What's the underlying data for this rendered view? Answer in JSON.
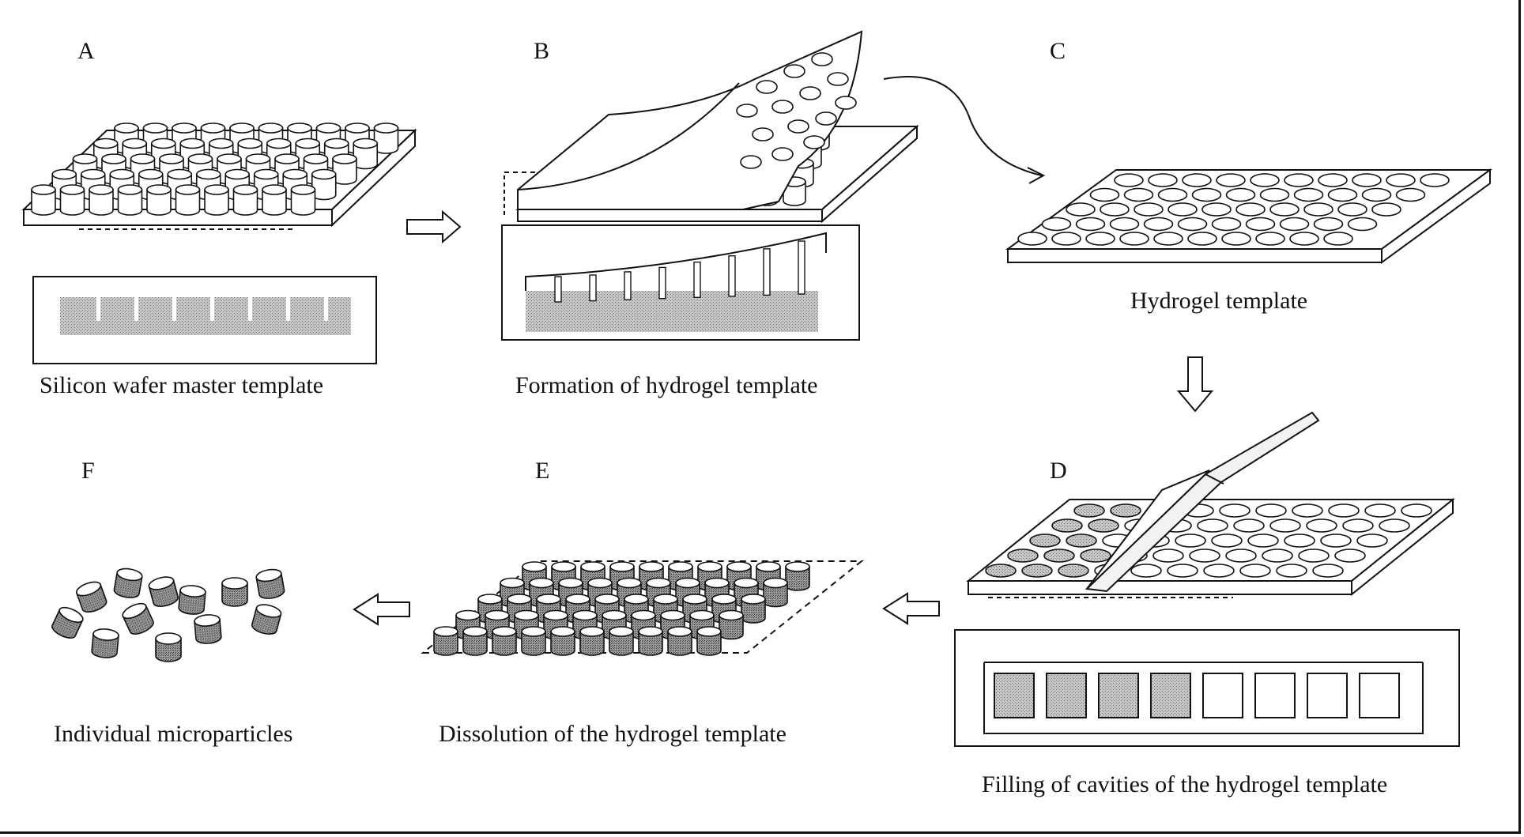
{
  "panels": {
    "a": {
      "letter": "A",
      "caption": "Silicon wafer master template"
    },
    "b": {
      "letter": "B",
      "caption": "Formation of hydrogel template"
    },
    "c": {
      "letter": "C",
      "caption": "Hydrogel template"
    },
    "d": {
      "letter": "D",
      "caption": "Filling of cavities of the hydrogel template"
    },
    "e": {
      "letter": "E",
      "caption": "Dissolution of the hydrogel template"
    },
    "f": {
      "letter": "F",
      "caption": "Individual microparticles"
    }
  },
  "colors": {
    "line": "#111111",
    "fill_gray": "#bdbdbd",
    "fill_dark": "#8c8c8c",
    "paper": "#ffffff"
  },
  "icons": [
    "arrow-right-icon",
    "arrow-left-icon",
    "arrow-down-icon",
    "curved-arrow-icon",
    "spatula-icon"
  ]
}
